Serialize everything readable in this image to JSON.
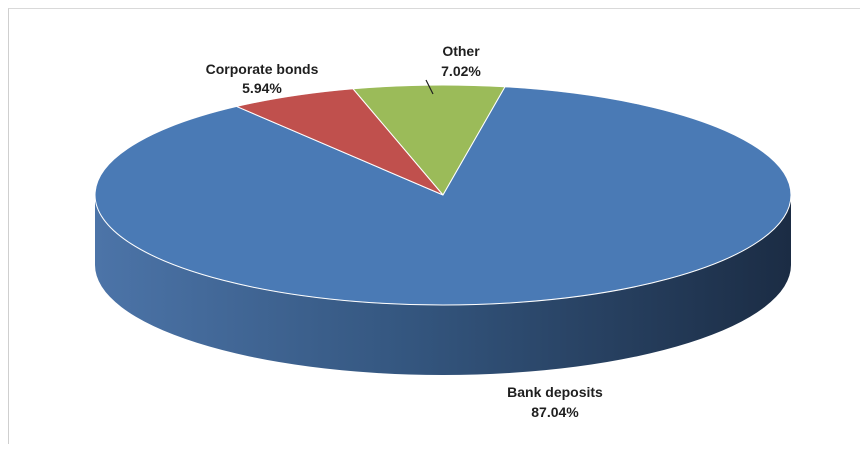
{
  "chart_data": {
    "type": "pie",
    "style": "3d",
    "title": "",
    "slices": [
      {
        "label": "Bank deposits",
        "value": 87.04,
        "value_label": "87.04%",
        "color": "#4a7ab5"
      },
      {
        "label": "Corporate bonds",
        "value": 5.94,
        "value_label": "5.94%",
        "color": "#c0504d"
      },
      {
        "label": "Other",
        "value": 7.02,
        "value_label": "7.02%",
        "color": "#9bbb59"
      }
    ],
    "legend": "none",
    "data_labels": "outside"
  }
}
